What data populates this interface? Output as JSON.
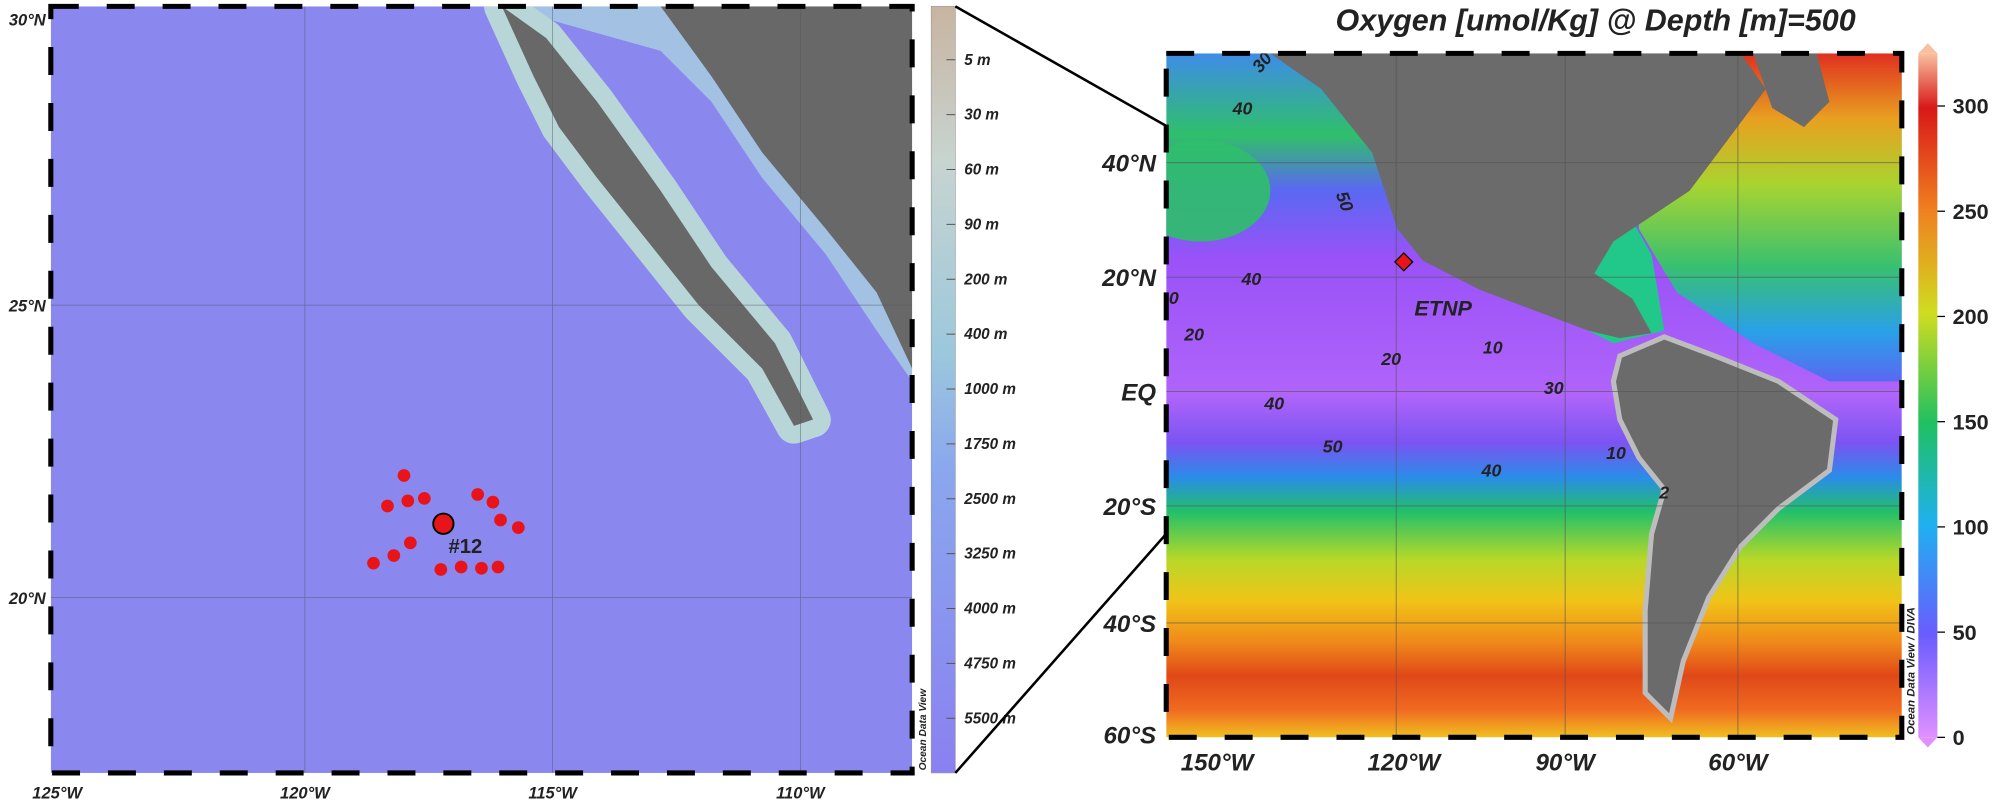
{
  "left_map": {
    "lat_labels": [
      "30°N",
      "25°N",
      "20°N"
    ],
    "lon_labels": [
      "125°W",
      "120°W",
      "115°W",
      "110°W"
    ],
    "station_label": "#12",
    "depth_scale": [
      "5 m",
      "30 m",
      "60 m",
      "90 m",
      "200 m",
      "400 m",
      "1000 m",
      "1750 m",
      "2500 m",
      "3250 m",
      "4000 m",
      "4750 m",
      "5500 m"
    ],
    "credit": "Ocean Data View"
  },
  "right_map": {
    "title": "Oxygen  [umol/Kg] @ Depth [m]=500",
    "lat_labels": [
      "40°N",
      "20°N",
      "EQ",
      "20°S",
      "40°S",
      "60°S"
    ],
    "lon_labels": [
      "150°W",
      "120°W",
      "90°W",
      "60°W"
    ],
    "region_label": "ETNP",
    "contour_labels": [
      "30",
      "40",
      "50",
      "40",
      "0",
      "20",
      "20",
      "10",
      "30",
      "40",
      "50",
      "40",
      "10",
      "2"
    ],
    "colorbar": {
      "ticks": [
        0,
        50,
        100,
        150,
        200,
        250,
        300
      ],
      "lim": [
        0,
        325
      ]
    },
    "credit": "Ocean Data View / DIVA"
  }
}
